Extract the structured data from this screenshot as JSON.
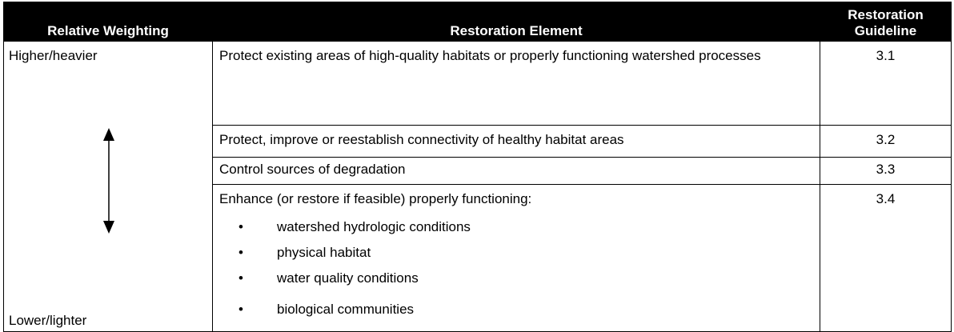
{
  "table": {
    "header": [
      "Relative Weighting",
      "Restoration Element",
      "Restoration Guideline"
    ],
    "weight_top": "Higher/heavier",
    "weight_bottom": "Lower/lighter",
    "rows": [
      {
        "element": "Protect existing areas of high-quality habitats or properly functioning watershed processes",
        "guideline": "3.1"
      },
      {
        "element": "Protect, improve or reestablish connectivity of healthy habitat areas",
        "guideline": "3.2"
      },
      {
        "element": "Control sources of degradation",
        "guideline": "3.3"
      },
      {
        "element": "Enhance (or restore if feasible) properly functioning:",
        "guideline": "3.4",
        "bullets": [
          "watershed hydrologic conditions",
          "physical habitat",
          "water quality conditions",
          "biological communities"
        ]
      }
    ]
  }
}
